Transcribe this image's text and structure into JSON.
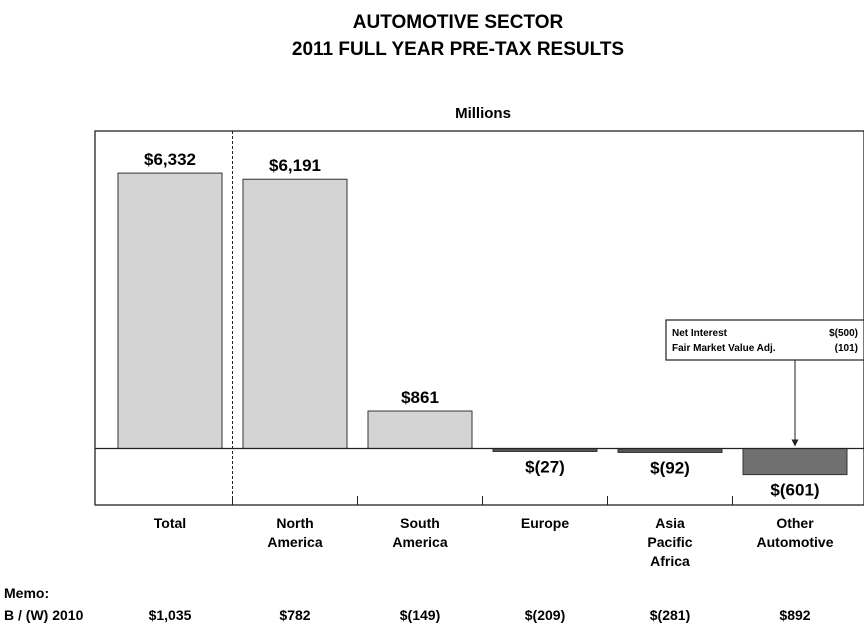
{
  "chart_data": {
    "type": "bar",
    "title": "AUTOMOTIVE SECTOR",
    "subtitle": "2011 FULL YEAR PRE-TAX RESULTS",
    "units_label": "Millions",
    "categories": [
      [
        "Total"
      ],
      [
        "North",
        "America"
      ],
      [
        "South",
        "America"
      ],
      [
        "Europe"
      ],
      [
        "Asia",
        "Pacific",
        "Africa"
      ],
      [
        "Other",
        "Automotive"
      ]
    ],
    "values": [
      6332,
      6191,
      861,
      -27,
      -92,
      -601
    ],
    "value_labels": [
      "$6,332",
      "$6,191",
      "$861",
      "$(27)",
      "$(92)",
      "$(601)"
    ],
    "bar_colors": [
      "#d4d4d4",
      "#d4d4d4",
      "#d4d4d4",
      "#555555",
      "#555555",
      "#707070"
    ],
    "ylim": [
      -1300,
      7300
    ],
    "grid": false,
    "divider_after_category": 0,
    "memo": {
      "label_line1": "Memo:",
      "label_line2": "B / (W) 2010",
      "values": [
        "$1,035",
        "$782",
        "$(149)",
        "$(209)",
        "$(281)",
        "$892"
      ]
    },
    "callout": {
      "target_category": 5,
      "rows": [
        {
          "label": "Net Interest",
          "value": "$(500)"
        },
        {
          "label": "Fair Market Value Adj.",
          "value": "(101)"
        }
      ]
    }
  }
}
